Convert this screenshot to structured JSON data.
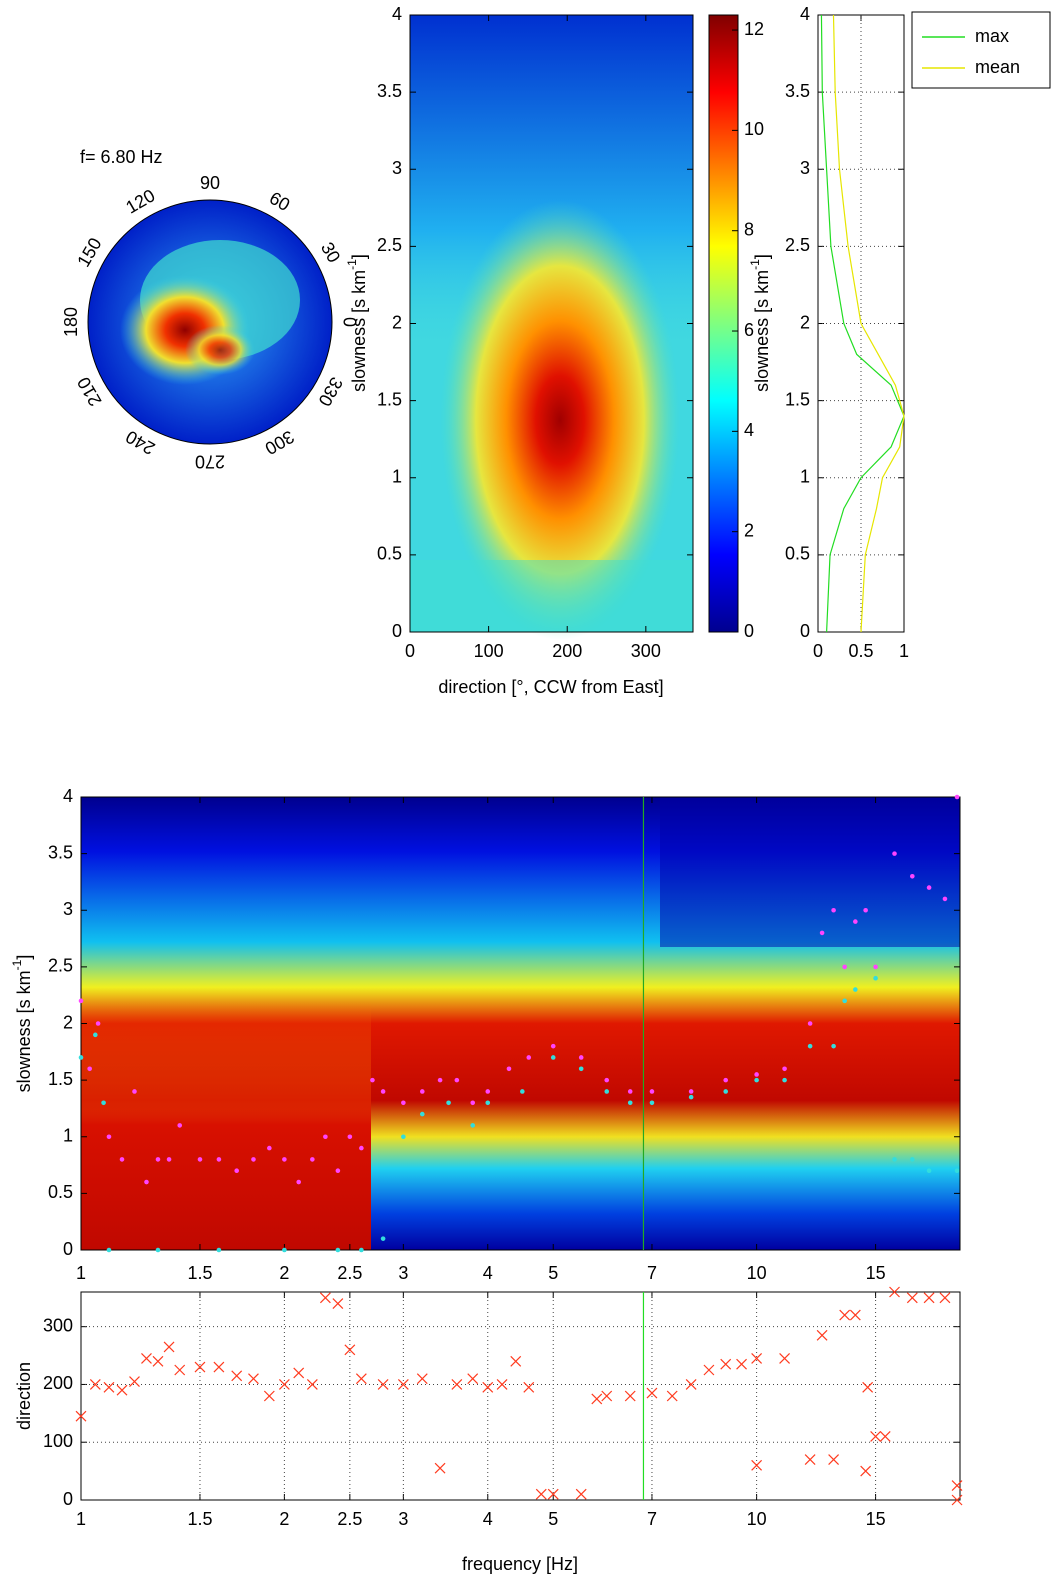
{
  "chart_data": [
    {
      "type": "polar",
      "title": "f= 6.80 Hz",
      "angle_ticks": [
        0,
        30,
        60,
        90,
        120,
        150,
        180,
        210,
        240,
        270,
        300,
        330
      ]
    },
    {
      "type": "heatmap",
      "xlabel": "direction [°, CCW from East]",
      "ylabel": [
        "slowness [s km",
        "-1",
        "]"
      ],
      "xlim": [
        0,
        360
      ],
      "xticks": [
        0,
        100,
        200,
        300
      ],
      "ylim": [
        0,
        4
      ],
      "yticks": [
        0,
        0.5,
        1,
        1.5,
        2,
        2.5,
        3,
        3.5,
        4
      ],
      "clim": [
        0,
        12.3
      ],
      "cticks": [
        0,
        2,
        4,
        6,
        8,
        10,
        12
      ]
    },
    {
      "type": "profile",
      "ylabel": [
        "slowness [s km",
        "-1",
        "]"
      ],
      "y": [
        0,
        0.5,
        0.8,
        1,
        1.2,
        1.4,
        1.6,
        1.8,
        2,
        2.5,
        3,
        3.5,
        4
      ],
      "series": [
        {
          "name": "max",
          "color": "#22dd22",
          "values": [
            0.1,
            0.14,
            0.3,
            0.5,
            0.85,
            1,
            0.85,
            0.45,
            0.3,
            0.15,
            0.1,
            0.05,
            0.04
          ]
        },
        {
          "name": "mean",
          "color": "#e6e600",
          "values": [
            0.5,
            0.55,
            0.68,
            0.75,
            0.95,
            1,
            0.9,
            0.7,
            0.5,
            0.35,
            0.25,
            0.2,
            0.18
          ]
        }
      ],
      "xlim": [
        0,
        1
      ],
      "xticks": [
        0,
        0.5,
        1
      ],
      "ylim": [
        0,
        4
      ],
      "yticks": [
        0,
        0.5,
        1,
        1.5,
        2,
        2.5,
        3,
        3.5,
        4
      ],
      "grid": true,
      "legend": "outside-right"
    },
    {
      "type": "scatter",
      "heat": true,
      "marker": "dot",
      "ylabel": [
        "slowness [s km",
        "-1",
        "]"
      ],
      "xscale": "log",
      "xlim": [
        1,
        20
      ],
      "xticks": [
        1,
        1.5,
        2,
        2.5,
        3,
        4,
        5,
        7,
        10,
        15
      ],
      "ylim": [
        0,
        4
      ],
      "yticks": [
        0,
        0.5,
        1,
        1.5,
        2,
        2.5,
        3,
        3.5,
        4
      ],
      "cursor": 6.8,
      "cursor_color": "#22aa22",
      "series": [
        {
          "color": "#ff44ff",
          "x": [
            1,
            1.03,
            1.06,
            1.1,
            1.15,
            1.2,
            1.25,
            1.3,
            1.35,
            1.4,
            1.5,
            1.6,
            1.7,
            1.8,
            1.9,
            2,
            2.1,
            2.2,
            2.3,
            2.4,
            2.5,
            2.6,
            2.7,
            2.8,
            3,
            3.2,
            3.4,
            3.6,
            3.8,
            4,
            4.3,
            4.6,
            5,
            5.5,
            6,
            6.5,
            7,
            8,
            9,
            10,
            11,
            12,
            12.5,
            13,
            13.5,
            14,
            14.5,
            15,
            16,
            17,
            18,
            19,
            19.8
          ],
          "values": [
            2.2,
            1.6,
            2,
            1,
            0.8,
            1.4,
            0.6,
            0.8,
            0.8,
            1.1,
            0.8,
            0.8,
            0.7,
            0.8,
            0.9,
            0.8,
            0.6,
            0.8,
            1,
            0.7,
            1,
            0.9,
            1.5,
            1.4,
            1.3,
            1.4,
            1.5,
            1.5,
            1.3,
            1.4,
            1.6,
            1.7,
            1.8,
            1.7,
            1.5,
            1.4,
            1.4,
            1.4,
            1.5,
            1.55,
            1.6,
            2,
            2.8,
            3,
            2.5,
            2.9,
            3,
            2.5,
            3.5,
            3.3,
            3.2,
            3.1,
            4
          ]
        },
        {
          "color": "#33dddd",
          "x": [
            1,
            1.05,
            1.08,
            1.1,
            1.3,
            1.6,
            2,
            2.4,
            2.6,
            2.8,
            3,
            3.2,
            3.5,
            3.8,
            4,
            4.5,
            5,
            5.5,
            6,
            6.5,
            7,
            8,
            9,
            10,
            11,
            12,
            13,
            13.5,
            14,
            15,
            16,
            17,
            18,
            19.8
          ],
          "values": [
            1.7,
            1.9,
            1.3,
            0,
            0,
            0,
            0,
            0,
            0,
            0.1,
            1,
            1.2,
            1.3,
            1.1,
            1.3,
            1.4,
            1.7,
            1.6,
            1.4,
            1.3,
            1.3,
            1.35,
            1.4,
            1.5,
            1.5,
            1.8,
            1.8,
            2.2,
            2.3,
            2.4,
            0.8,
            0.8,
            0.7,
            0.7
          ]
        }
      ]
    },
    {
      "type": "scatter",
      "marker": "x",
      "xlabel": "frequency [Hz]",
      "ylabel": "direction",
      "xscale": "log",
      "xlim": [
        1,
        20
      ],
      "xticks": [
        1,
        1.5,
        2,
        2.5,
        3,
        4,
        5,
        7,
        10,
        15
      ],
      "ylim": [
        0,
        360
      ],
      "yticks": [
        0,
        100,
        200,
        300
      ],
      "grid": true,
      "cursor": 6.8,
      "cursor_color": "#22dd22",
      "series": [
        {
          "color": "#ff3b1f",
          "x": [
            1,
            1.05,
            1.1,
            1.15,
            1.2,
            1.25,
            1.3,
            1.35,
            1.4,
            1.5,
            1.6,
            1.7,
            1.8,
            1.9,
            2,
            2.1,
            2.2,
            2.3,
            2.4,
            2.5,
            2.6,
            2.8,
            3,
            3.2,
            3.4,
            3.6,
            3.8,
            4,
            4.2,
            4.4,
            4.6,
            4.8,
            5,
            5.5,
            5.8,
            6,
            6.5,
            7,
            7.5,
            8,
            8.5,
            9,
            9.5,
            10,
            10,
            11,
            12,
            12.5,
            13,
            13.5,
            14,
            14.5,
            14.6,
            15,
            15.5,
            16,
            17,
            18,
            19,
            19.8,
            19.8
          ],
          "values": [
            145,
            200,
            195,
            190,
            205,
            245,
            240,
            265,
            225,
            230,
            230,
            215,
            210,
            180,
            200,
            220,
            200,
            350,
            340,
            260,
            210,
            200,
            200,
            210,
            55,
            200,
            210,
            195,
            200,
            240,
            195,
            10,
            10,
            10,
            175,
            180,
            180,
            185,
            180,
            200,
            225,
            235,
            235,
            60,
            245,
            245,
            70,
            285,
            70,
            320,
            320,
            50,
            195,
            110,
            110,
            360,
            350,
            350,
            350,
            25,
            0
          ]
        }
      ]
    }
  ]
}
